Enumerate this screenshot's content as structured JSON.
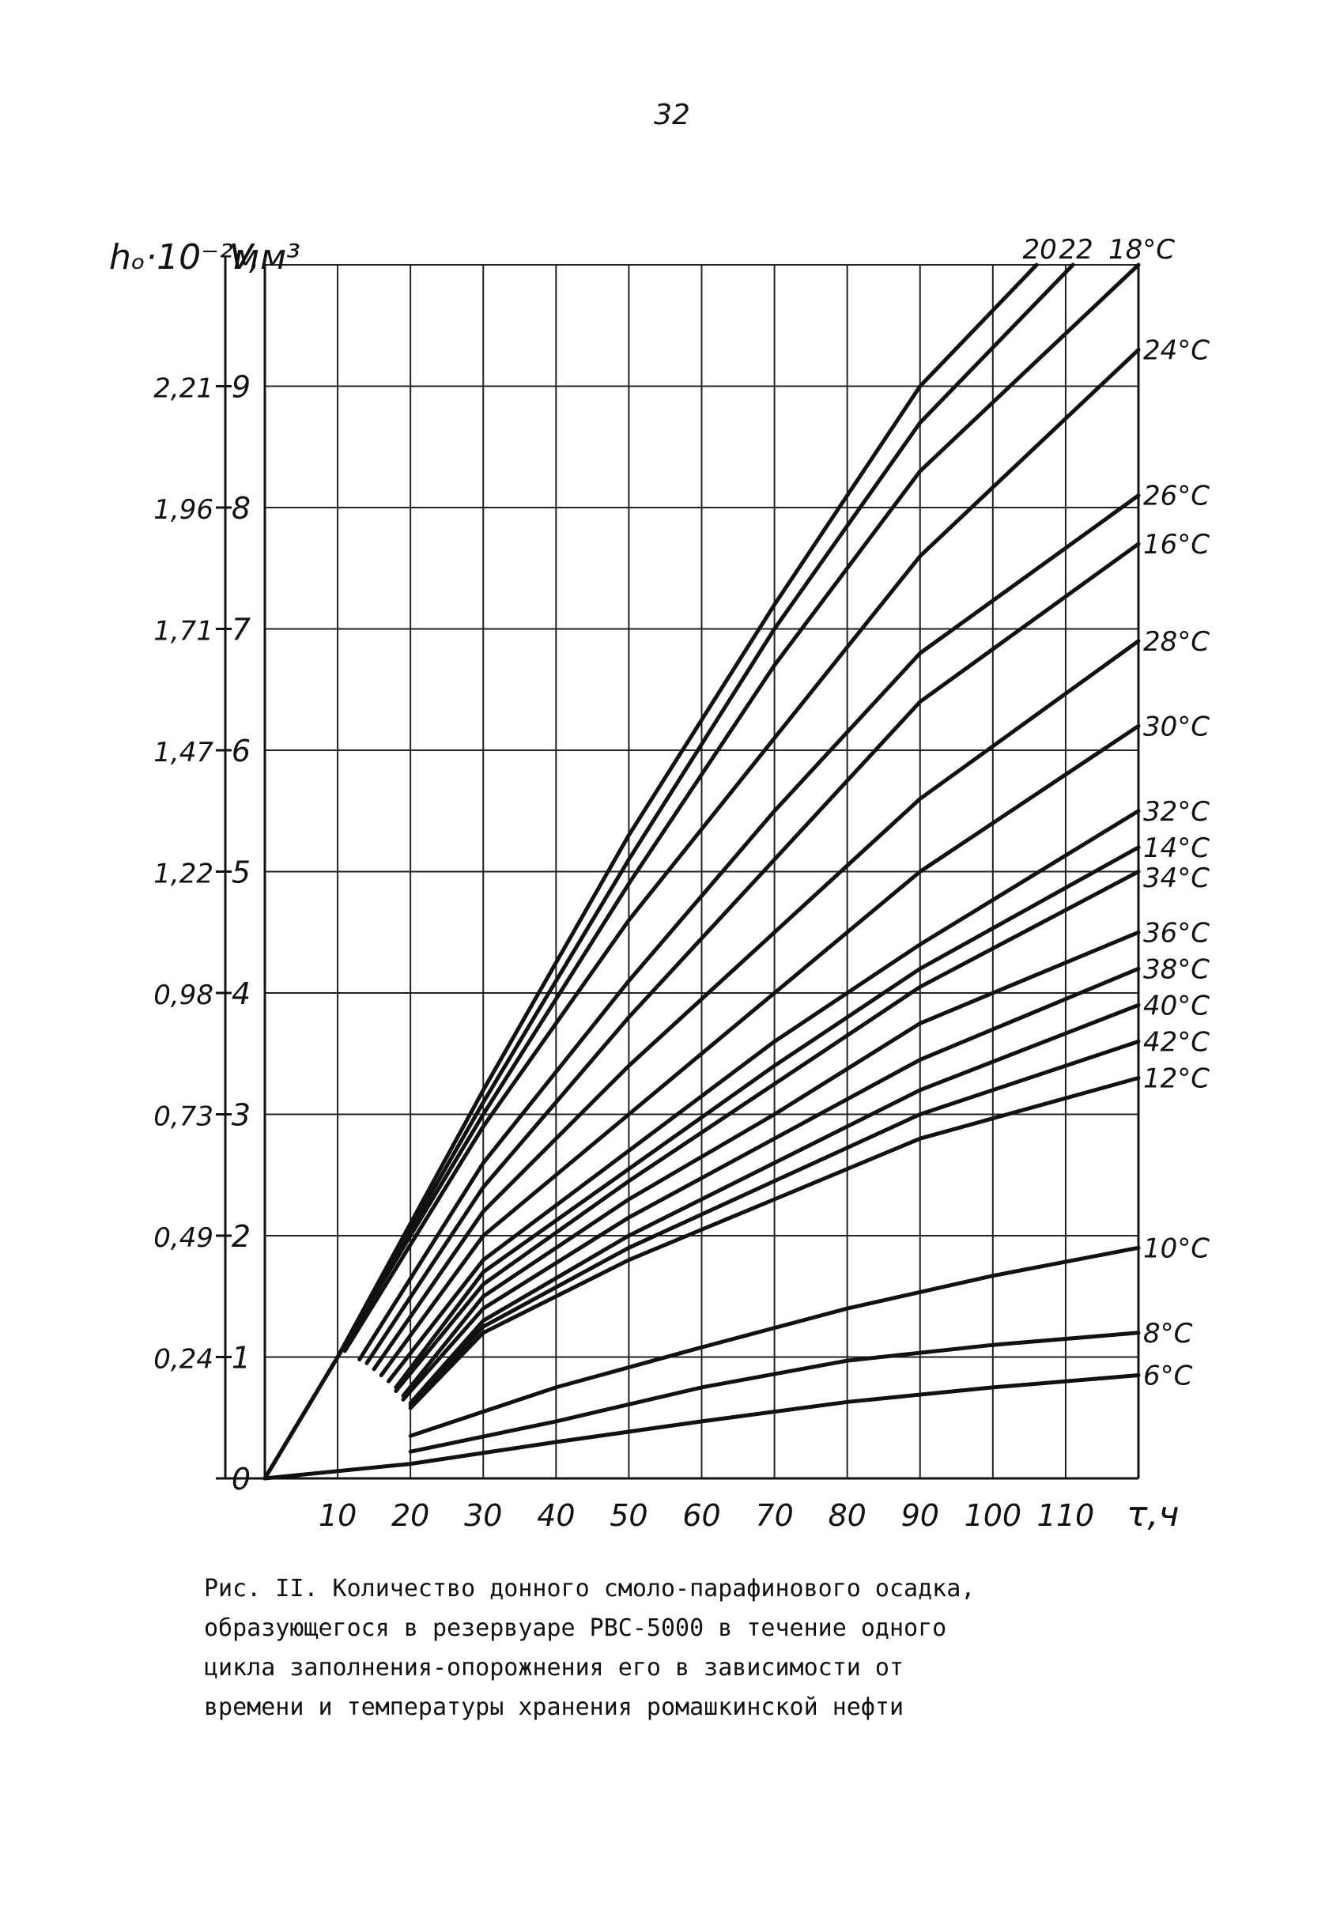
{
  "page_number": "32",
  "caption": "Рис. II. Количество донного смоло-парафинового осадка,\nобразующегося в резервуаре РВС-5000 в течение одного\nцикла заполнения-опорожнения его в зависимости от\nвремени и температуры хранения ромашкинской нефти",
  "colors": {
    "ink": "#111111",
    "paper": "#ffffff"
  },
  "chart_data": {
    "type": "line",
    "title": "",
    "xlabel": "τ,ч",
    "ylabel": "V,м³",
    "ylabel2": "hₒ·10⁻²м",
    "xlim": [
      0,
      120
    ],
    "ylim": [
      0,
      10
    ],
    "x_ticks": [
      "10",
      "20",
      "30",
      "40",
      "50",
      "60",
      "70",
      "80",
      "90",
      "100",
      "110"
    ],
    "x_tick_values": [
      10,
      20,
      30,
      40,
      50,
      60,
      70,
      80,
      90,
      100,
      110
    ],
    "y_ticks": [
      "0",
      "1",
      "2",
      "3",
      "4",
      "5",
      "6",
      "7",
      "8",
      "9"
    ],
    "y_tick_values": [
      0,
      1,
      2,
      3,
      4,
      5,
      6,
      7,
      8,
      9
    ],
    "h_ticks": [
      "0,24",
      "0,49",
      "0,73",
      "0,98",
      "1,22",
      "1,47",
      "1,71",
      "1,96",
      "2,21"
    ],
    "h_tick_values": [
      1,
      2,
      3,
      4,
      5,
      6,
      7,
      8,
      9
    ],
    "grid": true,
    "series": [
      {
        "name": "20",
        "points": [
          [
            0,
            0
          ],
          [
            10,
            1.0
          ],
          [
            30,
            3.2
          ],
          [
            50,
            5.3
          ],
          [
            70,
            7.2
          ],
          [
            90,
            9.0
          ],
          [
            106,
            10.0
          ]
        ]
      },
      {
        "name": "22",
        "points": [
          [
            0,
            0
          ],
          [
            10,
            1.0
          ],
          [
            30,
            3.1
          ],
          [
            50,
            5.1
          ],
          [
            70,
            7.0
          ],
          [
            90,
            8.7
          ],
          [
            111,
            10.0
          ]
        ]
      },
      {
        "name": "18°C",
        "points": [
          [
            0,
            0
          ],
          [
            10,
            1.0
          ],
          [
            30,
            3.0
          ],
          [
            50,
            4.9
          ],
          [
            70,
            6.7
          ],
          [
            90,
            8.3
          ],
          [
            120,
            10.0
          ]
        ]
      },
      {
        "name": "24°C",
        "points": [
          [
            11,
            1.05
          ],
          [
            30,
            2.9
          ],
          [
            50,
            4.6
          ],
          [
            70,
            6.1
          ],
          [
            90,
            7.6
          ],
          [
            120,
            9.3
          ]
        ]
      },
      {
        "name": "26°C",
        "points": [
          [
            13,
            0.98
          ],
          [
            30,
            2.6
          ],
          [
            50,
            4.1
          ],
          [
            70,
            5.5
          ],
          [
            90,
            6.8
          ],
          [
            120,
            8.1
          ]
        ]
      },
      {
        "name": "16°C",
        "points": [
          [
            14,
            0.95
          ],
          [
            30,
            2.4
          ],
          [
            50,
            3.8
          ],
          [
            70,
            5.1
          ],
          [
            90,
            6.4
          ],
          [
            120,
            7.7
          ]
        ]
      },
      {
        "name": "28°C",
        "points": [
          [
            15,
            0.9
          ],
          [
            30,
            2.2
          ],
          [
            50,
            3.4
          ],
          [
            70,
            4.5
          ],
          [
            90,
            5.6
          ],
          [
            120,
            6.9
          ]
        ]
      },
      {
        "name": "30°C",
        "points": [
          [
            16,
            0.85
          ],
          [
            30,
            2.0
          ],
          [
            50,
            3.0
          ],
          [
            70,
            4.0
          ],
          [
            90,
            5.0
          ],
          [
            120,
            6.2
          ]
        ]
      },
      {
        "name": "32°C",
        "points": [
          [
            17,
            0.8
          ],
          [
            30,
            1.8
          ],
          [
            50,
            2.7
          ],
          [
            70,
            3.6
          ],
          [
            90,
            4.4
          ],
          [
            120,
            5.5
          ]
        ]
      },
      {
        "name": "14°C",
        "points": [
          [
            18,
            0.75
          ],
          [
            30,
            1.7
          ],
          [
            50,
            2.55
          ],
          [
            70,
            3.4
          ],
          [
            90,
            4.2
          ],
          [
            120,
            5.2
          ]
        ]
      },
      {
        "name": "34°C",
        "points": [
          [
            18,
            0.72
          ],
          [
            30,
            1.6
          ],
          [
            50,
            2.45
          ],
          [
            70,
            3.25
          ],
          [
            90,
            4.05
          ],
          [
            120,
            5.0
          ]
        ]
      },
      {
        "name": "36°C",
        "points": [
          [
            19,
            0.68
          ],
          [
            30,
            1.5
          ],
          [
            50,
            2.3
          ],
          [
            70,
            3.0
          ],
          [
            90,
            3.75
          ],
          [
            120,
            4.5
          ]
        ]
      },
      {
        "name": "38°C",
        "points": [
          [
            19,
            0.65
          ],
          [
            30,
            1.4
          ],
          [
            50,
            2.15
          ],
          [
            70,
            2.8
          ],
          [
            90,
            3.45
          ],
          [
            120,
            4.2
          ]
        ]
      },
      {
        "name": "40°C",
        "points": [
          [
            20,
            0.62
          ],
          [
            30,
            1.3
          ],
          [
            50,
            2.0
          ],
          [
            70,
            2.6
          ],
          [
            90,
            3.2
          ],
          [
            120,
            3.9
          ]
        ]
      },
      {
        "name": "42°C",
        "points": [
          [
            20,
            0.6
          ],
          [
            30,
            1.25
          ],
          [
            50,
            1.9
          ],
          [
            70,
            2.45
          ],
          [
            90,
            3.0
          ],
          [
            120,
            3.6
          ]
        ]
      },
      {
        "name": "12°C",
        "points": [
          [
            20,
            0.58
          ],
          [
            30,
            1.2
          ],
          [
            50,
            1.8
          ],
          [
            70,
            2.3
          ],
          [
            90,
            2.8
          ],
          [
            120,
            3.3
          ]
        ]
      },
      {
        "name": "10°C",
        "points": [
          [
            20,
            0.35
          ],
          [
            40,
            0.75
          ],
          [
            60,
            1.08
          ],
          [
            80,
            1.4
          ],
          [
            100,
            1.67
          ],
          [
            120,
            1.9
          ]
        ]
      },
      {
        "name": "8°C",
        "points": [
          [
            20,
            0.22
          ],
          [
            40,
            0.47
          ],
          [
            60,
            0.75
          ],
          [
            80,
            0.97
          ],
          [
            100,
            1.1
          ],
          [
            120,
            1.2
          ]
        ]
      },
      {
        "name": "6°C",
        "points": [
          [
            0,
            0
          ],
          [
            20,
            0.12
          ],
          [
            40,
            0.3
          ],
          [
            60,
            0.47
          ],
          [
            80,
            0.63
          ],
          [
            100,
            0.75
          ],
          [
            120,
            0.85
          ]
        ]
      }
    ]
  }
}
